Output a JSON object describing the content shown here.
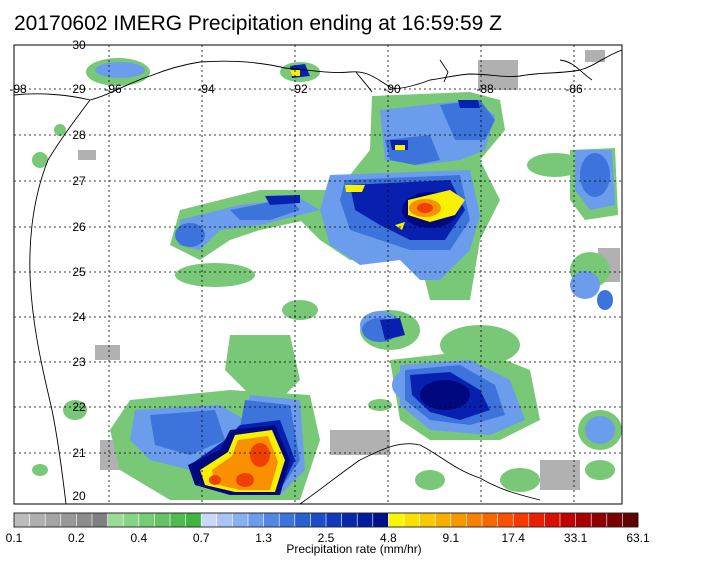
{
  "title": "20170602 IMERG Precipitation ending at 16:59:59 Z",
  "longitude_labels": [
    "-98",
    "-96",
    "-94",
    "-92",
    "-90",
    "-88",
    "-86"
  ],
  "latitude_labels": [
    "30",
    "29",
    "28",
    "27",
    "26",
    "25",
    "24",
    "23",
    "22",
    "21",
    "20"
  ],
  "colorbar": {
    "label": "Precipitation rate (mm/hr)",
    "tick_labels": [
      "0.1",
      "0.2",
      "0.4",
      "0.7",
      "1.3",
      "2.5",
      "4.8",
      "9.1",
      "17.4",
      "33.1",
      "63.1"
    ],
    "colors": [
      "#bcbcbc",
      "#b0b0b0",
      "#a4a4a4",
      "#989898",
      "#8c8c8c",
      "#808080",
      "#98dc98",
      "#86d486",
      "#74cc74",
      "#62c462",
      "#50bc50",
      "#40b440",
      "#c8d8f8",
      "#a8c4f4",
      "#88b0f0",
      "#6c9cec",
      "#5088e4",
      "#3c74dc",
      "#2860d4",
      "#1c4cc8",
      "#1038bc",
      "#0828ac",
      "#001ca0",
      "#00108c",
      "#f8f800",
      "#f8e000",
      "#f8c800",
      "#f8b000",
      "#f89800",
      "#f88000",
      "#f86800",
      "#f85000",
      "#f83800",
      "#e82000",
      "#d81000",
      "#c00000",
      "#a80000",
      "#900000",
      "#780000",
      "#600000"
    ]
  },
  "precipitation_colors": {
    "light_gray": "#a8a8a8",
    "light_green": "#78c878",
    "light_blue": "#6c9cec",
    "medium_blue": "#3c74dc",
    "dark_blue": "#0820b0",
    "navy": "#000880",
    "yellow": "#f8f000",
    "orange": "#f89000",
    "red_orange": "#f04000"
  }
}
